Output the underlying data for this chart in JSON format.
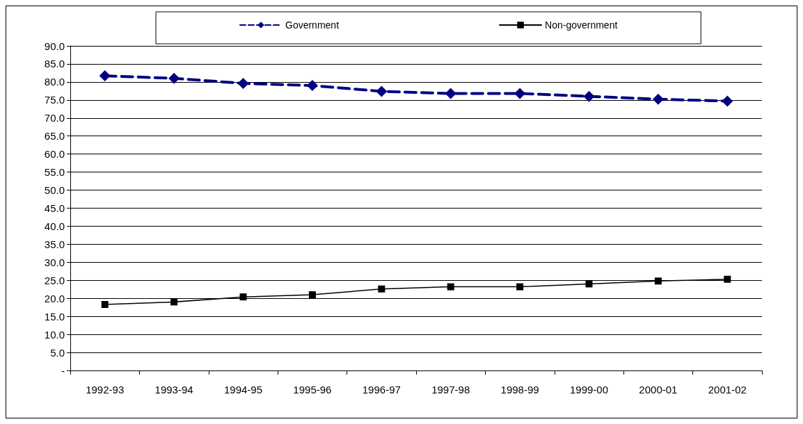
{
  "chart_data": {
    "type": "line",
    "categories": [
      "1992-93",
      "1993-94",
      "1994-95",
      "1995-96",
      "1996-97",
      "1997-98",
      "1998-99",
      "1999-00",
      "2000-01",
      "2001-02"
    ],
    "series": [
      {
        "name": "Government",
        "color": "#000080",
        "marker": "diamond",
        "line_style": "dashed",
        "values": [
          81.7,
          81.0,
          79.6,
          79.0,
          77.4,
          76.8,
          76.8,
          76.0,
          75.2,
          74.7
        ]
      },
      {
        "name": "Non-government",
        "color": "#000000",
        "marker": "square",
        "line_style": "solid",
        "values": [
          18.3,
          19.0,
          20.4,
          21.0,
          22.6,
          23.2,
          23.2,
          24.0,
          24.8,
          25.3
        ]
      }
    ],
    "ylim": [
      0,
      90
    ],
    "yticks": [
      {
        "value": 0,
        "label": "-"
      },
      {
        "value": 5,
        "label": "5.0"
      },
      {
        "value": 10,
        "label": "10.0"
      },
      {
        "value": 15,
        "label": "15.0"
      },
      {
        "value": 20,
        "label": "20.0"
      },
      {
        "value": 25,
        "label": "25.0"
      },
      {
        "value": 30,
        "label": "30.0"
      },
      {
        "value": 35,
        "label": "35.0"
      },
      {
        "value": 40,
        "label": "40.0"
      },
      {
        "value": 45,
        "label": "45.0"
      },
      {
        "value": 50,
        "label": "50.0"
      },
      {
        "value": 55,
        "label": "55.0"
      },
      {
        "value": 60,
        "label": "60.0"
      },
      {
        "value": 65,
        "label": "65.0"
      },
      {
        "value": 70,
        "label": "70.0"
      },
      {
        "value": 75,
        "label": "75.0"
      },
      {
        "value": 80,
        "label": "80.0"
      },
      {
        "value": 85,
        "label": "85.0"
      },
      {
        "value": 90,
        "label": "90.0"
      }
    ],
    "grid": "y",
    "legend": "top"
  }
}
